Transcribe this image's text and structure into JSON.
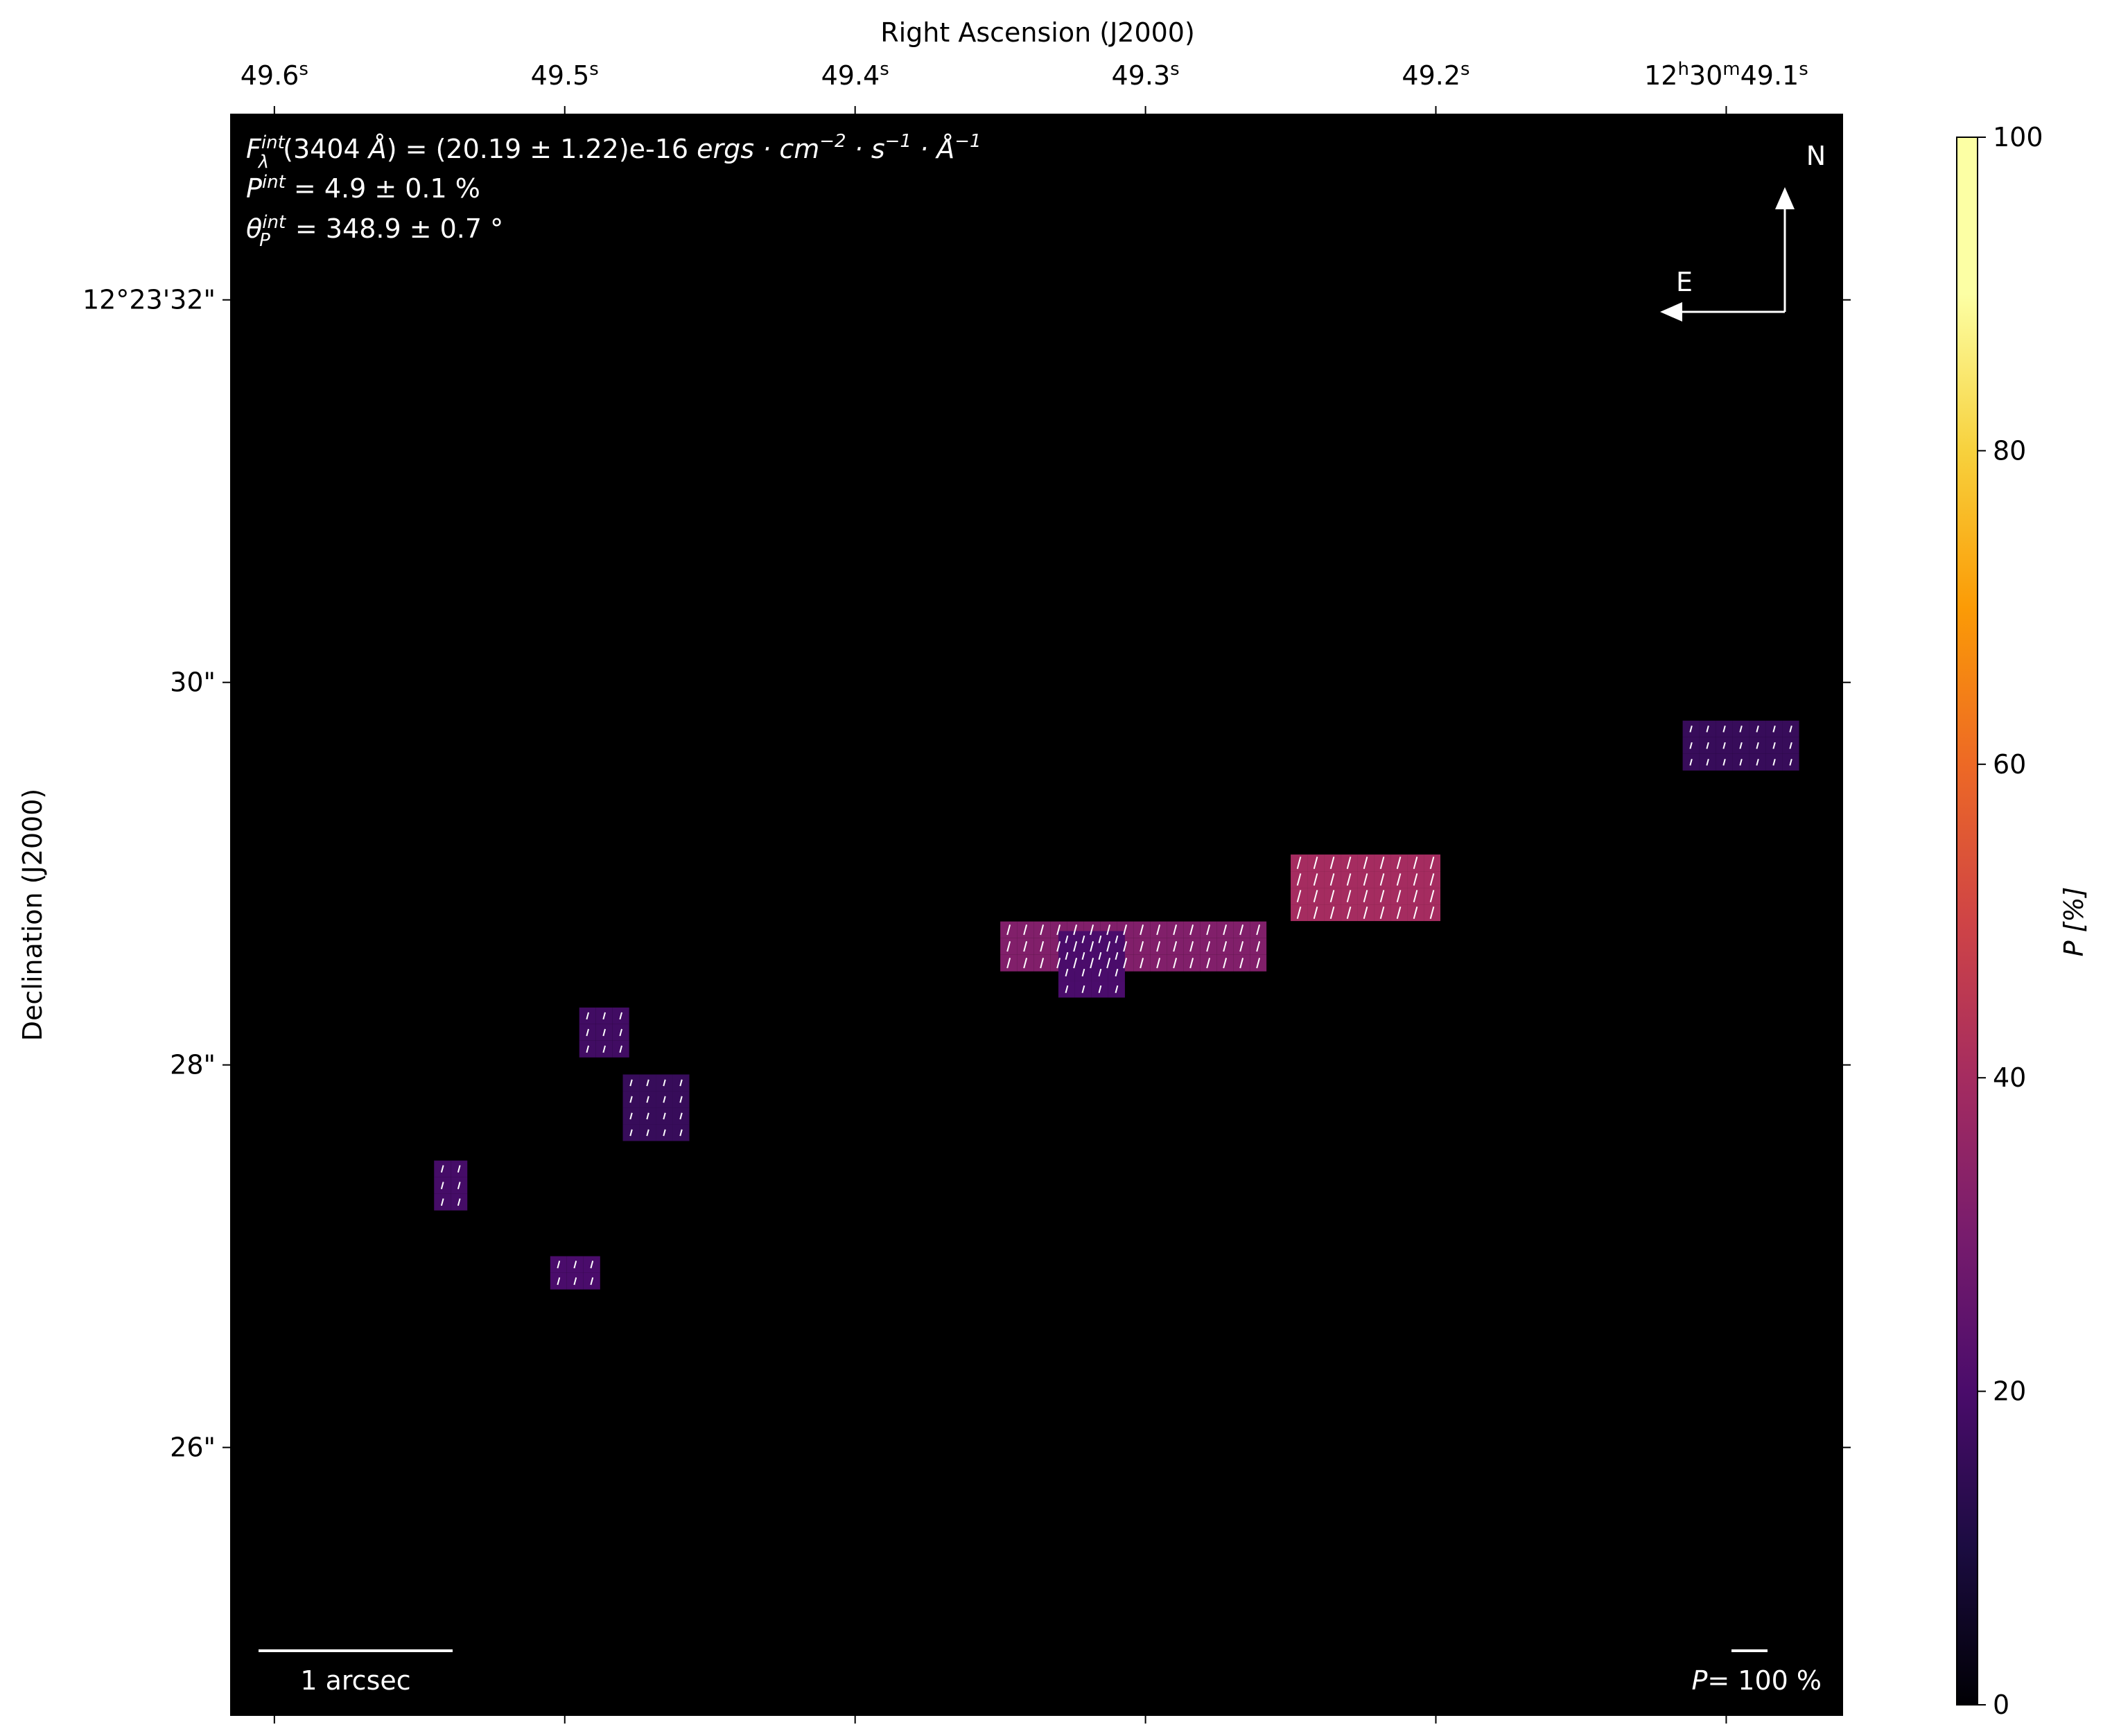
{
  "figure": {
    "title_top": "Right Ascension (J2000)",
    "ylabel": "Declination (J2000)",
    "colorbar_label": "P [%]"
  },
  "axes": {
    "x_ticks": [
      {
        "pre": "49.6",
        "sup": "s"
      },
      {
        "pre": "49.5",
        "sup": "s"
      },
      {
        "pre": "49.4",
        "sup": "s"
      },
      {
        "pre": "49.3",
        "sup": "s"
      },
      {
        "pre": "49.2",
        "sup": "s"
      },
      {
        "pre": "12",
        "sup": "h",
        "mid": "30",
        "sup2": "m",
        "post": "49.1",
        "sup3": "s"
      }
    ],
    "y_ticks": [
      "12°23'32\"",
      "30\"",
      "28\"",
      "26\""
    ],
    "colorbar_ticks": [
      "0",
      "20",
      "40",
      "60",
      "80",
      "100"
    ]
  },
  "annotations": {
    "flux_line": "F_λ^int(3404 Å) = (20.19 ± 1.22)e-16 ergs·cm^-2·s^-1·Å^-1",
    "flux_sym": "F",
    "flux_sub": "λ",
    "flux_sup": "int",
    "flux_rest": "(3404 ",
    "flux_ang": "Å",
    "flux_val": ") = (20.19 ± 1.22)e-16 ",
    "flux_units": "ergs · cm",
    "flux_e1": "−2",
    "flux_u2": " · s",
    "flux_e2": "−1",
    "flux_u3": " · Å",
    "flux_e3": "−1",
    "p_sym": "P",
    "p_sup": "int",
    "p_val": " = 4.9 ± 0.1 %",
    "theta_sym": "θ",
    "theta_sub": "P",
    "theta_sup": "int",
    "theta_val": " = 348.9 ± 0.7 °",
    "north": "N",
    "east": "E",
    "scalebar": "1 arcsec",
    "pscale_sym": "P",
    "pscale_val": "= 100 %"
  },
  "colors": {
    "background": "#000000",
    "vector": "#ffffff",
    "colormap": "inferno"
  },
  "chart_data": {
    "type": "heatmap",
    "xlabel": "Right Ascension (J2000)",
    "ylabel": "Declination (J2000)",
    "colorbar": {
      "label": "P [%]",
      "range": [
        0,
        100
      ]
    },
    "xlim_sec": [
      49.615,
      49.06
    ],
    "ylim_arcsec": [
      24.6,
      32.97
    ],
    "regions": [
      {
        "ra_range": [
          49.08,
          49.115
        ],
        "dec_range": [
          29.55,
          29.8
        ],
        "P_percent": 16
      },
      {
        "ra_range": [
          49.2,
          49.25
        ],
        "dec_range": [
          28.75,
          29.1
        ],
        "P_percent": 40
      },
      {
        "ra_range": [
          49.26,
          49.35
        ],
        "dec_range": [
          28.5,
          28.75
        ],
        "P_percent": 32
      },
      {
        "ra_range": [
          49.31,
          49.33
        ],
        "dec_range": [
          28.4,
          28.7
        ],
        "P_percent": 20
      },
      {
        "ra_range": [
          49.46,
          49.48
        ],
        "dec_range": [
          27.6,
          27.95
        ],
        "P_percent": 16
      },
      {
        "ra_range": [
          49.48,
          49.495
        ],
        "dec_range": [
          28.05,
          28.3
        ],
        "P_percent": 18
      },
      {
        "ra_range": [
          49.535,
          49.545
        ],
        "dec_range": [
          27.3,
          27.5
        ],
        "P_percent": 19
      },
      {
        "ra_range": [
          49.49,
          49.505
        ],
        "dec_range": [
          26.9,
          27.0
        ],
        "P_percent": 20
      }
    ],
    "integrated": {
      "flux_wavelength_A": 3404,
      "flux": 20.19,
      "flux_err": 1.22,
      "flux_exp": -16,
      "P": 4.9,
      "P_err": 0.1,
      "theta_P": 348.9,
      "theta_P_err": 0.7
    }
  }
}
